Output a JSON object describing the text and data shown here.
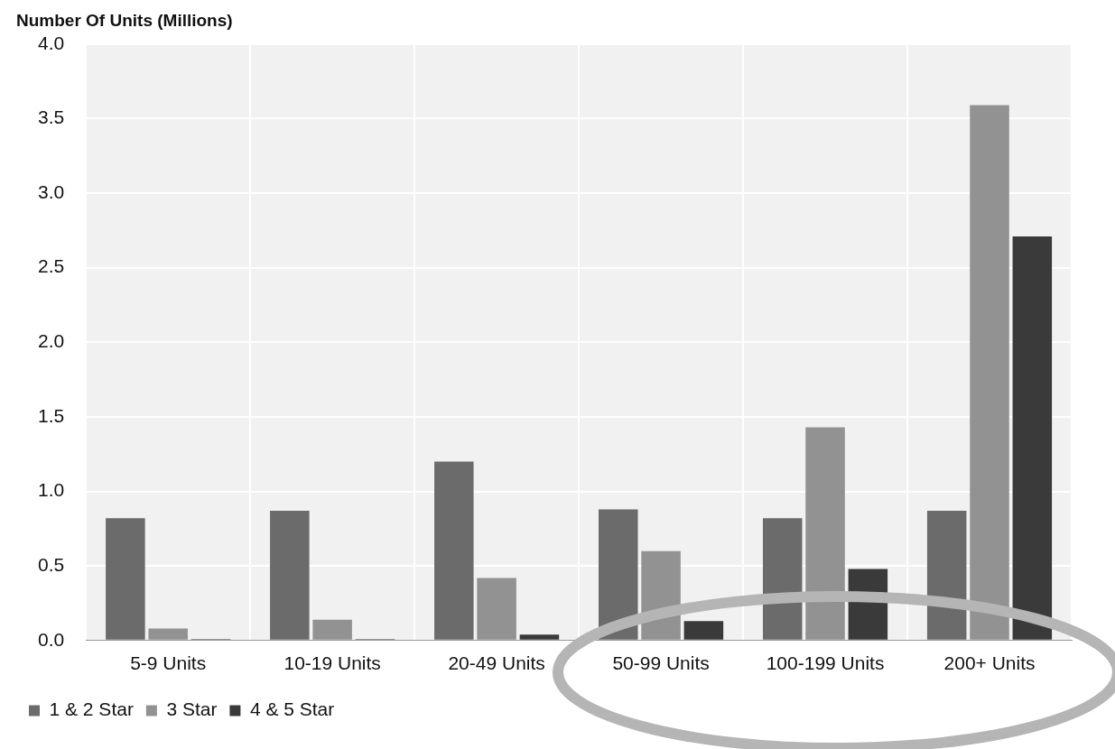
{
  "chart_data": {
    "type": "bar",
    "title": "Number Of Units (Millions)",
    "categories": [
      "5-9 Units",
      "10-19 Units",
      "20-49 Units",
      "50-99 Units",
      "100-199 Units",
      "200+ Units"
    ],
    "series": [
      {
        "name": "1 & 2 Star",
        "color": "#6b6b6b",
        "values": [
          0.82,
          0.87,
          1.2,
          0.88,
          0.82,
          0.87
        ]
      },
      {
        "name": "3 Star",
        "color": "#929292",
        "values": [
          0.08,
          0.14,
          0.42,
          0.6,
          1.43,
          3.59
        ]
      },
      {
        "name": "4 & 5 Star",
        "color": "#3a3a3a",
        "values": [
          0.01,
          0.01,
          0.04,
          0.13,
          0.48,
          2.71
        ]
      }
    ],
    "ylim": [
      0,
      4
    ],
    "yticks": [
      {
        "value": 0,
        "label": "0.0"
      },
      {
        "value": 0.5,
        "label": "0.5"
      },
      {
        "value": 1,
        "label": "1.0"
      },
      {
        "value": 1.5,
        "label": "1.5"
      },
      {
        "value": 2,
        "label": "2.0"
      },
      {
        "value": 2.5,
        "label": "2.5"
      },
      {
        "value": 3,
        "label": "3.0"
      },
      {
        "value": 3.5,
        "label": "3.5"
      },
      {
        "value": 4,
        "label": "4.0"
      }
    ],
    "grid": true,
    "legend": "bottom left"
  }
}
